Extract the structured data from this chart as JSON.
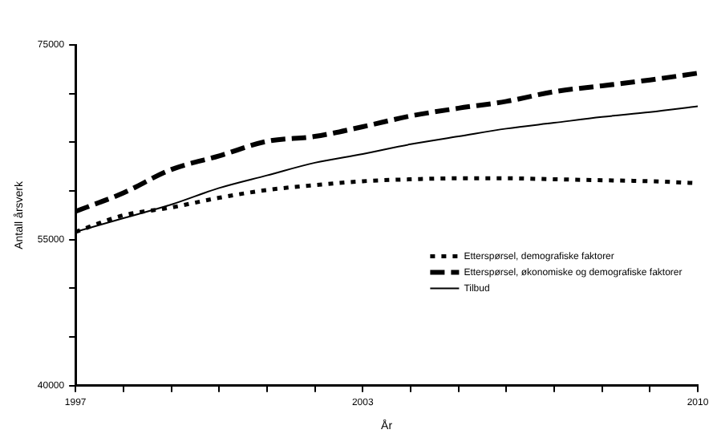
{
  "chart_data": {
    "type": "line",
    "xlabel": "År",
    "ylabel": "Antall årsverk",
    "x": [
      1997,
      1998,
      1999,
      2000,
      2001,
      2002,
      2003,
      2004,
      2005,
      2006,
      2007,
      2008,
      2009,
      2010
    ],
    "series": [
      {
        "name": "Etterspørsel, demografiske faktorer",
        "color": "#000000",
        "line_style": "dotted",
        "values": [
          55800,
          57500,
          58300,
          59300,
          60100,
          60600,
          61000,
          61200,
          61300,
          61300,
          61200,
          61100,
          61000,
          60800
        ]
      },
      {
        "name": "Etterspørsel, økonomiske og demografiske faktorer",
        "color": "#000000",
        "line_style": "dashed",
        "values": [
          57900,
          59800,
          62200,
          63600,
          65100,
          65600,
          66600,
          67700,
          68500,
          69200,
          70200,
          70800,
          71400,
          72100
        ]
      },
      {
        "name": "Tilbud",
        "color": "#000000",
        "line_style": "solid",
        "values": [
          55800,
          57200,
          58600,
          60300,
          61600,
          62900,
          63800,
          64800,
          65600,
          66400,
          67000,
          67600,
          68100,
          68700
        ]
      }
    ],
    "xlim": [
      1997,
      2010
    ],
    "xticks": [
      1997,
      {
        "value": 1998,
        "label": null
      },
      {
        "value": 1999,
        "label": null
      },
      {
        "value": 2000,
        "label": null
      },
      {
        "value": 2001,
        "label": null
      },
      {
        "value": 2002,
        "label": null
      },
      2003,
      {
        "value": 2004,
        "label": null
      },
      {
        "value": 2005,
        "label": null
      },
      {
        "value": 2006,
        "label": null
      },
      {
        "value": 2007,
        "label": null
      },
      {
        "value": 2008,
        "label": null
      },
      {
        "value": 2009,
        "label": null
      },
      2010
    ],
    "ylim": [
      40000,
      75000
    ],
    "yticks": [
      40000,
      {
        "value": 45000,
        "label": null
      },
      {
        "value": 50000,
        "label": null
      },
      55000,
      {
        "value": 60000,
        "label": null
      },
      {
        "value": 65000,
        "label": null
      },
      {
        "value": 70000,
        "label": null
      },
      75000
    ],
    "grid": false,
    "legend": "right",
    "marker": "none"
  }
}
